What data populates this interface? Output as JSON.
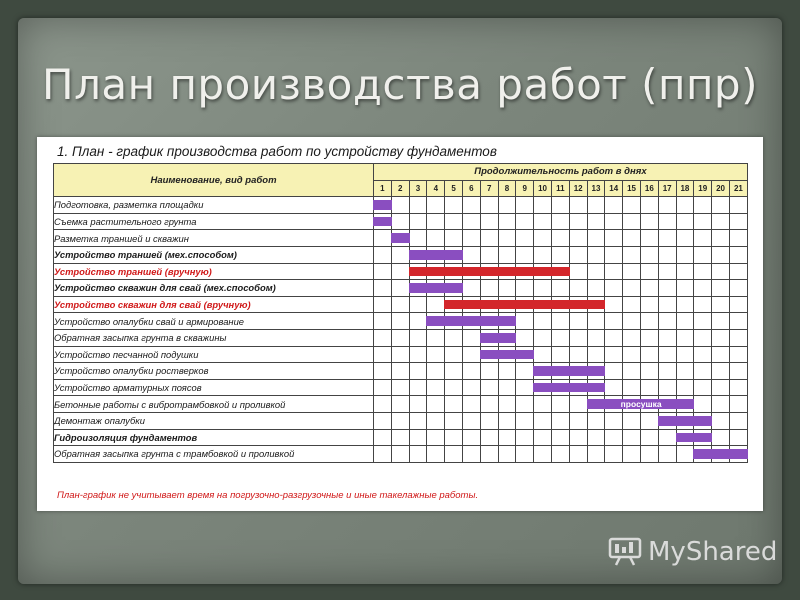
{
  "slide": {
    "title": "План производства работ (ппр)"
  },
  "document": {
    "heading": "1. План - график производства работ по устройству фундаментов",
    "name_header": "Наименование, вид работ",
    "duration_header": "Продолжительность работ в днях",
    "days": [
      "1",
      "2",
      "3",
      "4",
      "5",
      "6",
      "7",
      "8",
      "9",
      "10",
      "11",
      "12",
      "13",
      "14",
      "15",
      "16",
      "17",
      "18",
      "19",
      "20",
      "21"
    ],
    "footnote": "План-график не учитывает время на погрузочно-разгрузочные и иные такелажные работы."
  },
  "colors": {
    "purple_bar": "#8a4ec0",
    "red_bar": "#d3262b",
    "header_fill": "#f7f2b4",
    "red_text": "#d01818"
  },
  "tasks": [
    {
      "name": "Подготовка, разметка площадки",
      "style": "normal",
      "color": "purple",
      "start": 1,
      "end": 1
    },
    {
      "name": "Съемка растительного грунта",
      "style": "normal",
      "color": "purple",
      "start": 1,
      "end": 1
    },
    {
      "name": "Разметка траншей и скважин",
      "style": "normal",
      "color": "purple",
      "start": 2,
      "end": 2
    },
    {
      "name": "Устройство траншей (мех.способом)",
      "style": "bold",
      "color": "purple",
      "start": 3,
      "end": 5
    },
    {
      "name": "Устройство траншей (вручную)",
      "style": "red",
      "color": "red",
      "start": 3,
      "end": 11
    },
    {
      "name": "Устройство скважин для свай (мех.способом)",
      "style": "bold",
      "color": "purple",
      "start": 3,
      "end": 5
    },
    {
      "name": "Устройство скважин для свай (вручную)",
      "style": "red",
      "color": "red",
      "start": 5,
      "end": 13
    },
    {
      "name": "Устройство опалубки свай и армирование",
      "style": "normal",
      "color": "purple",
      "start": 4,
      "end": 8
    },
    {
      "name": "Обратная засыпка грунта в скважины",
      "style": "normal",
      "color": "purple",
      "start": 7,
      "end": 8
    },
    {
      "name": "Устройство песчанной подушки",
      "style": "normal",
      "color": "purple",
      "start": 7,
      "end": 9
    },
    {
      "name": "Устройство опалубки ростверков",
      "style": "normal",
      "color": "purple",
      "start": 10,
      "end": 13
    },
    {
      "name": "Устройство арматурных поясов",
      "style": "normal",
      "color": "purple",
      "start": 10,
      "end": 13
    },
    {
      "name": "Бетонные работы с вибротрамбовкой и проливкой",
      "style": "normal",
      "color": "purple",
      "start": 13,
      "end": 18,
      "annotation": "просушка"
    },
    {
      "name": "Демонтаж опалубки",
      "style": "normal",
      "color": "purple",
      "start": 17,
      "end": 19
    },
    {
      "name": "Гидроизоляция фундаментов",
      "style": "bold",
      "color": "purple",
      "start": 18,
      "end": 19
    },
    {
      "name": "Обратная засыпка грунта с трамбовкой и проливкой",
      "style": "normal",
      "color": "purple",
      "start": 19,
      "end": 21
    }
  ],
  "watermark": {
    "text": "MyShared",
    "icon": "presentation-board-icon"
  }
}
